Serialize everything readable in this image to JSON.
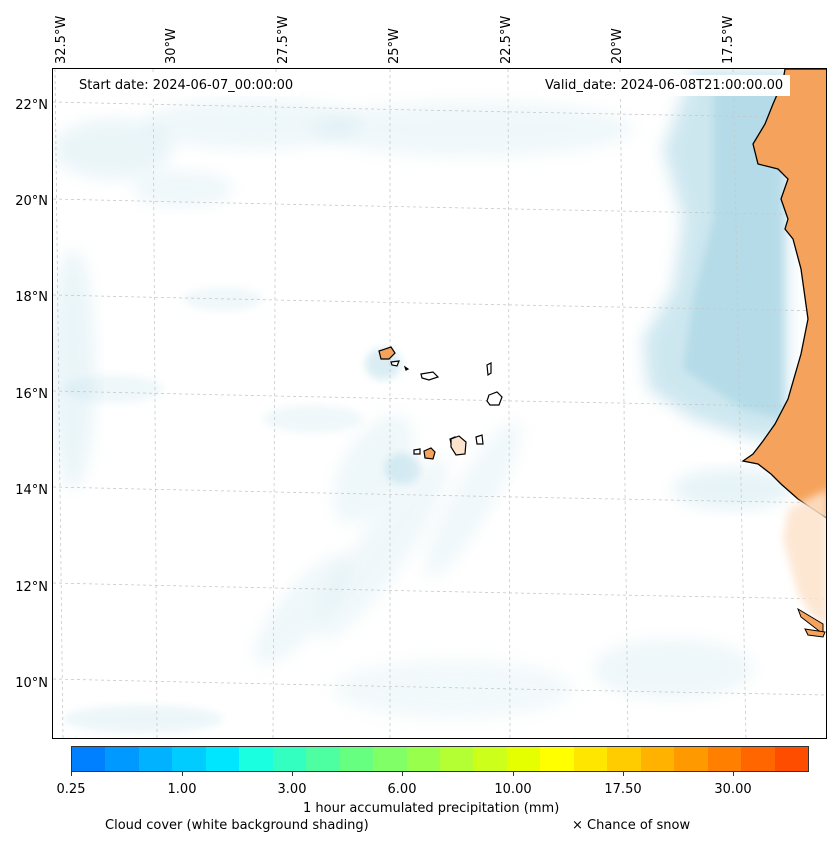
{
  "map": {
    "start_date": "Start date: 2024-06-07_00:00:00",
    "valid_date": "Valid_date: 2024-06-08T21:00:00.00",
    "lon_labels": [
      "32.5°W",
      "30°W",
      "27.5°W",
      "25°W",
      "22.5°W",
      "20°W",
      "17.5°W"
    ],
    "lat_labels": [
      "22°N",
      "20°N",
      "18°N",
      "16°N",
      "14°N",
      "12°N",
      "10°N"
    ],
    "colors": {
      "land": "#f5a35c",
      "cloud": "#add8e6",
      "coastline": "#000000",
      "gridline": "#c8c8c8"
    }
  },
  "colorbar": {
    "title": "1 hour accumulated precipitation (mm)",
    "tick_labels": [
      "0.25",
      "1.00",
      "3.00",
      "6.00",
      "10.00",
      "17.50",
      "30.00"
    ],
    "colors": [
      "#0080ff",
      "#0099ff",
      "#00b2ff",
      "#00ccff",
      "#00e6ff",
      "#1affe0",
      "#33ffc0",
      "#4dffa0",
      "#66ff80",
      "#80ff66",
      "#99ff4d",
      "#b3ff33",
      "#ccff1a",
      "#e6ff00",
      "#ffff00",
      "#ffe600",
      "#ffcc00",
      "#ffb300",
      "#ff9900",
      "#ff8000",
      "#ff6600",
      "#ff4d00"
    ]
  },
  "legend": {
    "cloud_caption": "Cloud cover (white background shading)",
    "snow_caption": "× Chance of snow"
  }
}
